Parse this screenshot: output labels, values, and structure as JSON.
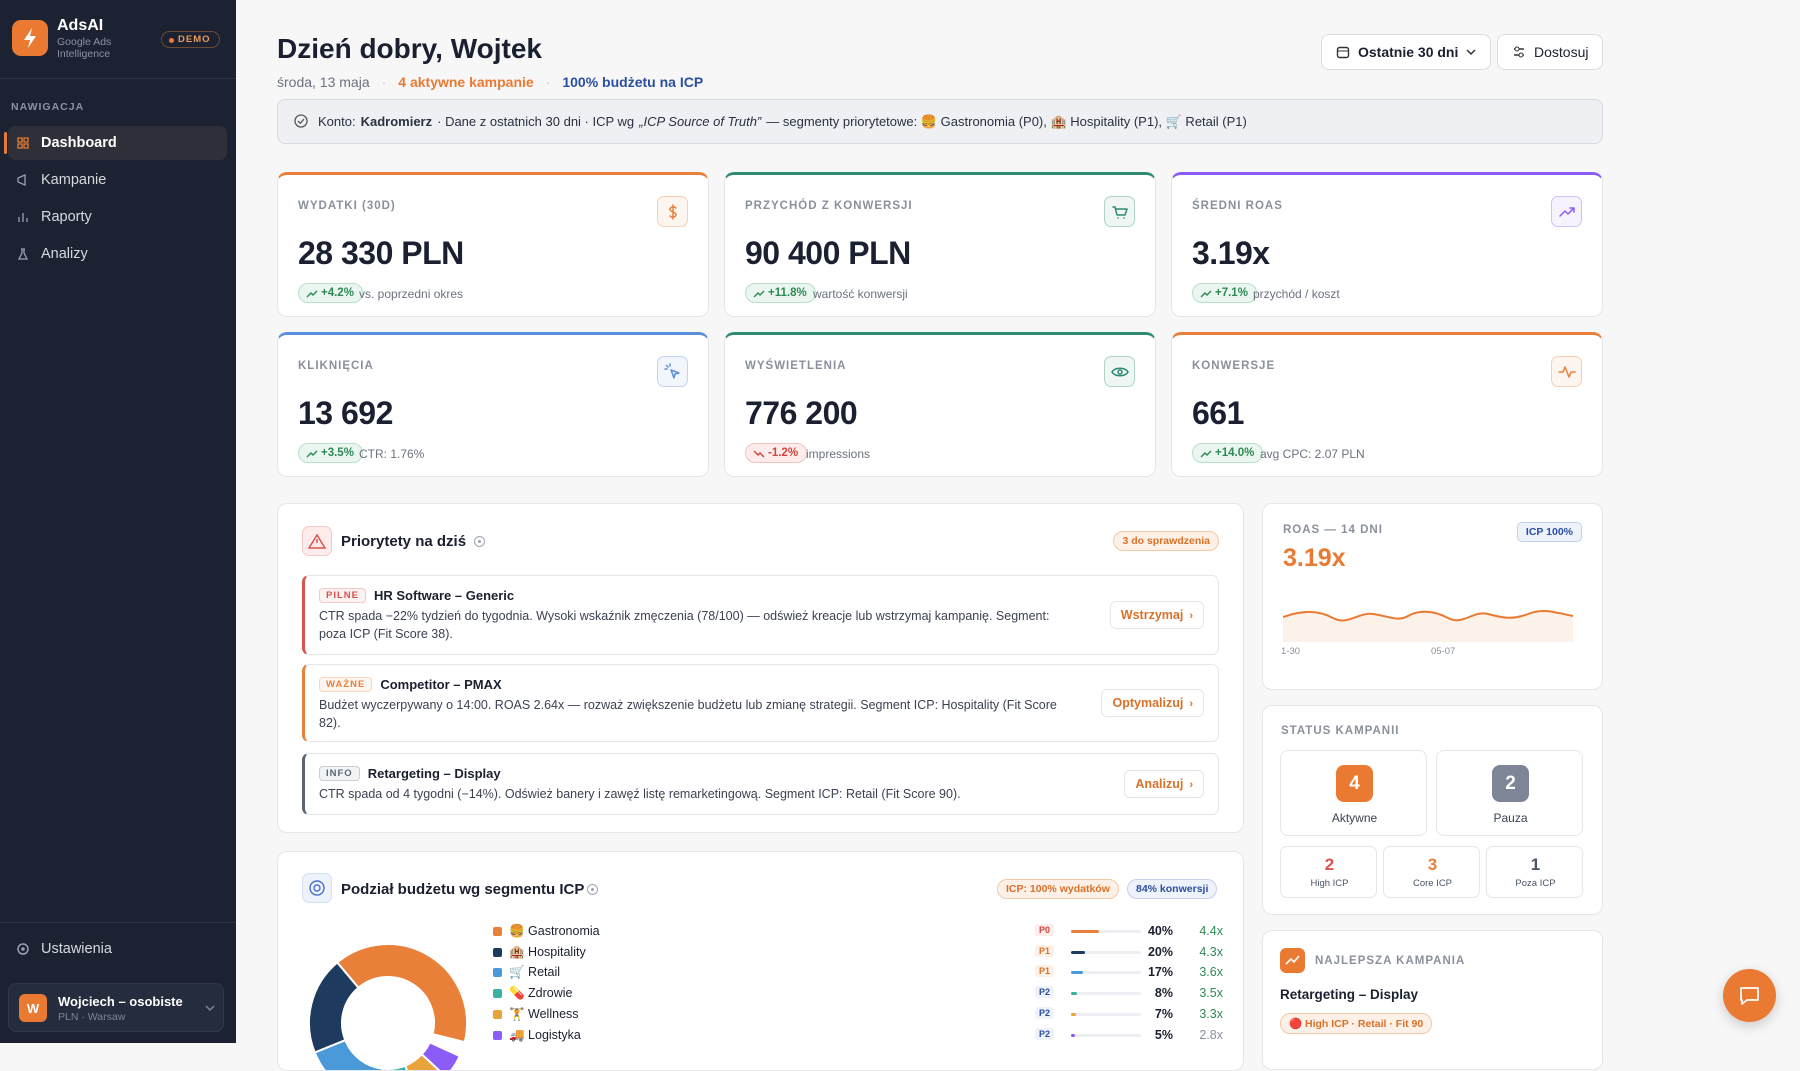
{
  "sidebar": {
    "brand": {
      "name": "AdsAI",
      "tagline": "Google Ads Intelligence",
      "badge": "DEMO"
    },
    "nav_heading": "NAWIGACJA",
    "nav": [
      "Dashboard",
      "Kampanie",
      "Raporty",
      "Analizy"
    ],
    "settings": "Ustawienia",
    "user": {
      "initial": "W",
      "name": "Wojciech – osobiste",
      "meta": "PLN · Warsaw"
    }
  },
  "header": {
    "greeting": "Dzień dobry, Wojtek",
    "date": "środa, 13 maja",
    "active_campaigns": "4 aktywne kampanie",
    "icp_share": "100% budżetu na ICP",
    "buttons": [
      "Ostatnie 30 dni",
      "Dostosuj"
    ]
  },
  "notice": {
    "prefix": "Konto:",
    "account": "Kadromierz",
    "middle": "· Dane z ostatnich 30 dni · ICP wg",
    "source": "„ICP Source of Truth”",
    "suffix": "— segmenty priorytetowe: 🍔 Gastronomia (P0), 🏨 Hospitality (P1), 🛒 Retail (P1)"
  },
  "kpis": [
    {
      "label": "WYDATKI (30D)",
      "value": "28 330 PLN",
      "change": "+4.2%",
      "note": "vs. poprzedni okres",
      "color": "#e8803a",
      "icon": "$",
      "trend": "up"
    },
    {
      "label": "PRZYCHÓD Z KONWERSJI",
      "value": "90 400 PLN",
      "change": "+11.8%",
      "note": "wartość konwersji",
      "color": "#2f8a74",
      "icon": "cart",
      "trend": "up"
    },
    {
      "label": "ŚREDNI ROAS",
      "value": "3.19x",
      "change": "+7.1%",
      "note": "przychód / koszt",
      "color": "#8b5cf6",
      "icon": "trend",
      "trend": "up"
    },
    {
      "label": "KLIKNIĘCIA",
      "value": "13 692",
      "change": "+3.5%",
      "note": "CTR: 1.76%",
      "color": "#5b8fd9",
      "icon": "click",
      "trend": "up"
    },
    {
      "label": "WYŚWIETLENIA",
      "value": "776 200",
      "change": "-1.2%",
      "note": "impressions",
      "color": "#2f8a74",
      "icon": "eye",
      "trend": "down"
    },
    {
      "label": "KONWERSJE",
      "value": "661",
      "change": "+14.0%",
      "note": "avg CPC: 2.07 PLN",
      "color": "#e8803a",
      "icon": "pulse",
      "trend": "up"
    }
  ],
  "priorities": {
    "title": "Priorytety na dziś",
    "badge": "3 do sprawdzenia",
    "items": [
      {
        "tag": "PILNE",
        "title": "HR Software – Generic",
        "text": "CTR spada −22% tydzień do tygodnia. Wysoki wskaźnik zmęczenia (78/100) — odśwież kreacje lub wstrzymaj kampanię. Segment: poza ICP (Fit Score 38).",
        "action": "Wstrzymaj",
        "color": "#d9534f"
      },
      {
        "tag": "WAŻNE",
        "title": "Competitor – PMAX",
        "text": "Budżet wyczerpywany o 14:00. ROAS 2.64x — rozważ zwiększenie budżetu lub zmianę strategii. Segment ICP: Hospitality (Fit Score 82).",
        "action": "Optymalizuj",
        "color": "#e8803a"
      },
      {
        "tag": "INFO",
        "title": "Retargeting – Display",
        "text": "CTR spada od 4 tygodni (−14%). Odśwież banery i zawęź listę remarketingową. Segment ICP: Retail (Fit Score 90).",
        "action": "Analizuj",
        "color": "#5b6577"
      }
    ]
  },
  "budget": {
    "title": "Podział budżetu wg segmentu ICP",
    "badges": [
      "ICP: 100% wydatków",
      "84% konwersji"
    ],
    "rows": [
      {
        "name": "🍔 Gastronomia",
        "priority": "P0",
        "share": {
          "value": 40,
          "label": "40%"
        },
        "roas": "4.4x",
        "color": "#e8803a"
      },
      {
        "name": "🏨 Hospitality",
        "priority": "P1",
        "share": {
          "value": 20,
          "label": "20%"
        },
        "roas": "4.3x",
        "color": "#1e3a5f"
      },
      {
        "name": "🛒 Retail",
        "priority": "P1",
        "share": {
          "value": 17,
          "label": "17%"
        },
        "roas": "3.6x",
        "color": "#4a9ad9"
      },
      {
        "name": "💊 Zdrowie",
        "priority": "P2",
        "share": {
          "value": 8,
          "label": "8%"
        },
        "roas": "3.5x",
        "color": "#3bb0a0"
      },
      {
        "name": "🏋 Wellness",
        "priority": "P2",
        "share": {
          "value": 7,
          "label": "7%"
        },
        "roas": "3.3x",
        "color": "#e8a33a"
      },
      {
        "name": "🚚 Logistyka",
        "priority": "P2",
        "share": {
          "value": 5,
          "label": "5%"
        },
        "roas": "2.8x",
        "color": "#8b5cf6"
      }
    ]
  },
  "roas_card": {
    "label": "ROAS — 14 DNI",
    "value": "3.19x",
    "badge": "ICP 100%",
    "axis": [
      "1-30",
      "05-07"
    ]
  },
  "status": {
    "title": "STATUS KAMPANII",
    "active": {
      "count": "4",
      "label": "Aktywne"
    },
    "paused": {
      "count": "2",
      "label": "Pauza"
    },
    "icp": [
      {
        "count": "2",
        "label": "High ICP",
        "color": "#d9534f"
      },
      {
        "count": "3",
        "label": "Core ICP",
        "color": "#e8803a"
      },
      {
        "count": "1",
        "label": "Poza ICP",
        "color": "#4a5568"
      }
    ]
  },
  "best": {
    "heading": "NAJLEPSZA KAMPANIA",
    "name": "Retargeting – Display",
    "tag": "🔴 High ICP · Retail · Fit 90"
  }
}
